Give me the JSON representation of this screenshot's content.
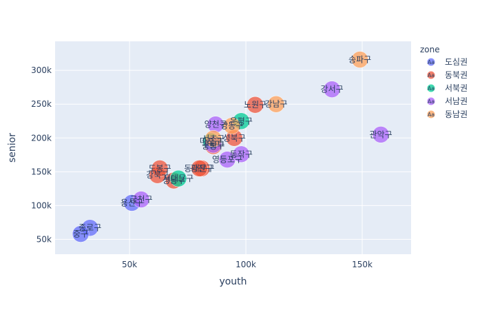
{
  "chart_data": {
    "type": "scatter",
    "xlabel": "youth",
    "ylabel": "senior",
    "xlim": [
      18000,
      171000
    ],
    "ylim": [
      28000,
      343000
    ],
    "x_ticks": [
      {
        "value": 50000,
        "label": "50k"
      },
      {
        "value": 100000,
        "label": "100k"
      },
      {
        "value": 150000,
        "label": "150k"
      }
    ],
    "y_ticks": [
      {
        "value": 50000,
        "label": "50k"
      },
      {
        "value": 100000,
        "label": "100k"
      },
      {
        "value": 150000,
        "label": "150k"
      },
      {
        "value": 200000,
        "label": "200k"
      },
      {
        "value": 250000,
        "label": "250k"
      },
      {
        "value": 300000,
        "label": "300k"
      }
    ],
    "grid": true,
    "legend": {
      "title": "zone",
      "placement": "right",
      "symbol_text": "Aa"
    },
    "series": [
      {
        "name": "도심권",
        "color": "#636efa",
        "points": [
          {
            "label": "종로구",
            "x": 33000,
            "y": 67000
          },
          {
            "label": "중구",
            "x": 29000,
            "y": 58000
          },
          {
            "label": "용산구",
            "x": 51000,
            "y": 104000
          }
        ]
      },
      {
        "name": "동북권",
        "color": "#ef553b",
        "points": [
          {
            "label": "성동구",
            "x": 69000,
            "y": 137000
          },
          {
            "label": "광진구",
            "x": 81000,
            "y": 155000
          },
          {
            "label": "동대문구",
            "x": 80000,
            "y": 155000
          },
          {
            "label": "중랑구",
            "x": 86000,
            "y": 188000
          },
          {
            "label": "성북구",
            "x": 95000,
            "y": 200000
          },
          {
            "label": "강북구",
            "x": 62000,
            "y": 145000
          },
          {
            "label": "도봉구",
            "x": 63000,
            "y": 155000
          },
          {
            "label": "노원구",
            "x": 104000,
            "y": 249000
          }
        ]
      },
      {
        "name": "서북권",
        "color": "#00cc96",
        "points": [
          {
            "label": "은평구",
            "x": 98000,
            "y": 225000
          },
          {
            "label": "서대문구",
            "x": 71000,
            "y": 140000
          },
          {
            "label": "마포구",
            "x": 85000,
            "y": 195000
          }
        ]
      },
      {
        "name": "서남권",
        "color": "#ab63fa",
        "points": [
          {
            "label": "양천구",
            "x": 87000,
            "y": 220000
          },
          {
            "label": "강서구",
            "x": 137000,
            "y": 272000
          },
          {
            "label": "구로구",
            "x": 86000,
            "y": 190000
          },
          {
            "label": "금천구",
            "x": 55000,
            "y": 109000
          },
          {
            "label": "영등포구",
            "x": 92000,
            "y": 168000
          },
          {
            "label": "동작구",
            "x": 98000,
            "y": 176000
          },
          {
            "label": "관악구",
            "x": 158000,
            "y": 205000
          }
        ]
      },
      {
        "name": "동남권",
        "color": "#ffa15a",
        "points": [
          {
            "label": "서초구",
            "x": 86000,
            "y": 199000
          },
          {
            "label": "강남구",
            "x": 113000,
            "y": 250000
          },
          {
            "label": "송파구",
            "x": 149000,
            "y": 316000
          },
          {
            "label": "강동구",
            "x": 94000,
            "y": 218000
          }
        ]
      }
    ]
  }
}
